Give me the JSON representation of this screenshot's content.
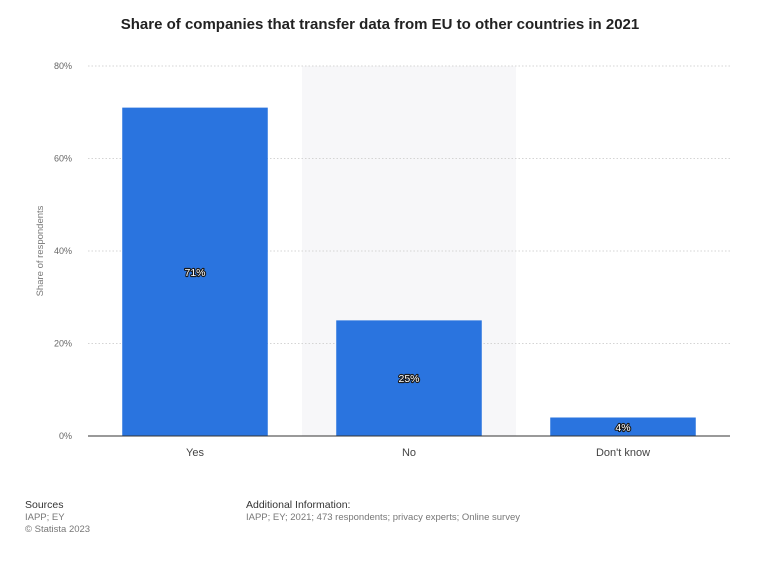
{
  "chart_data": {
    "type": "bar",
    "title": "Share of companies that transfer data from EU to other countries in 2021",
    "xlabel": "",
    "ylabel": "Share of respondents",
    "categories": [
      "Yes",
      "No",
      "Don't know"
    ],
    "values": [
      71,
      25,
      4
    ],
    "data_labels": [
      "71%",
      "25%",
      "4%"
    ],
    "ylim": [
      0,
      80
    ],
    "yticks": [
      0,
      20,
      40,
      60,
      80
    ],
    "ytick_labels": [
      "0%",
      "20%",
      "40%",
      "60%",
      "80%"
    ],
    "highlight_category_index": 1,
    "grid": true,
    "legend": "none",
    "bar_color": "#2a74df",
    "highlight_band_color": "#f7f7f9"
  },
  "footer": {
    "sources_heading": "Sources",
    "sources_lines": [
      "IAPP; EY",
      "© Statista 2023"
    ],
    "additional_heading": "Additional Information:",
    "additional_text": "IAPP; EY; 2021; 473 respondents; privacy experts; Online survey"
  }
}
